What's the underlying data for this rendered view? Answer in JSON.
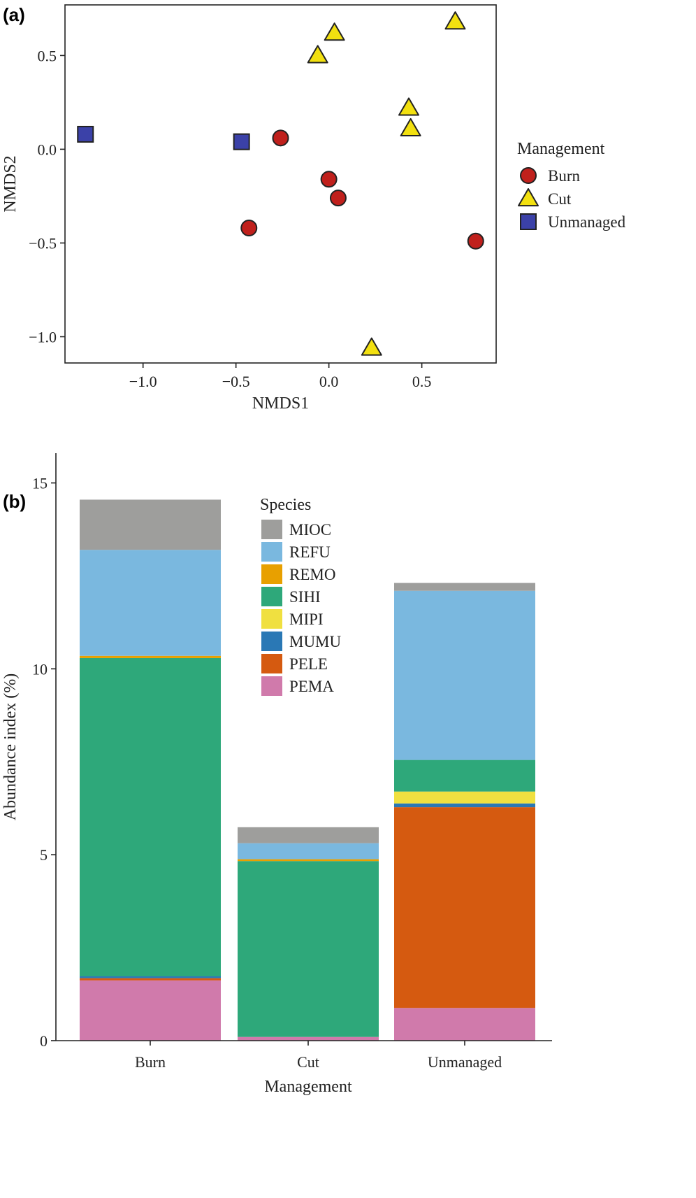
{
  "chart_data": [
    {
      "panel": "(a)",
      "type": "scatter",
      "xlabel": "NMDS1",
      "ylabel": "NMDS2",
      "xlim": [
        -1.42,
        0.9
      ],
      "ylim": [
        -1.14,
        0.77
      ],
      "xticks": [
        -1.0,
        -0.5,
        0.0,
        0.5
      ],
      "xtick_labels": [
        "−1.0",
        "−0.5",
        "0.0",
        "0.5"
      ],
      "yticks": [
        -1.0,
        -0.5,
        0.0,
        0.5
      ],
      "ytick_labels": [
        "−1.0",
        "−0.5",
        "0.0",
        "0.5"
      ],
      "grid": false,
      "legend_title": "Management",
      "legend_position": "right",
      "series": [
        {
          "name": "Burn",
          "shape": "circle",
          "color": "#c0201c",
          "points": [
            [
              -0.26,
              0.06
            ],
            [
              0.0,
              -0.16
            ],
            [
              0.05,
              -0.26
            ],
            [
              -0.43,
              -0.42
            ],
            [
              0.79,
              -0.49
            ]
          ]
        },
        {
          "name": "Cut",
          "shape": "triangle",
          "color": "#f2e010",
          "points": [
            [
              0.03,
              0.62
            ],
            [
              -0.06,
              0.5
            ],
            [
              0.68,
              0.68
            ],
            [
              0.43,
              0.22
            ],
            [
              0.44,
              0.11
            ],
            [
              0.23,
              -1.06
            ]
          ]
        },
        {
          "name": "Unmanaged",
          "shape": "square",
          "color": "#3b41a8",
          "points": [
            [
              -1.31,
              0.08
            ],
            [
              -0.47,
              0.04
            ]
          ]
        }
      ]
    },
    {
      "panel": "(b)",
      "type": "bar",
      "stacked": true,
      "xlabel": "Management",
      "ylabel": "Abundance index (%)",
      "ylim": [
        0,
        15.8
      ],
      "yticks": [
        0,
        5,
        10,
        15
      ],
      "ytick_labels": [
        "0",
        "5",
        "10",
        "15"
      ],
      "categories": [
        "Burn",
        "Cut",
        "Unmanaged"
      ],
      "grid": false,
      "legend_title": "Species",
      "legend_position": "top-center",
      "legend_order": [
        "MIOC",
        "REFU",
        "REMO",
        "SIHI",
        "MIPI",
        "MUMU",
        "PELE",
        "PEMA"
      ],
      "series": [
        {
          "name": "PEMA",
          "color": "#d07aab",
          "values": [
            1.62,
            0.1,
            0.88
          ]
        },
        {
          "name": "PELE",
          "color": "#d55a10",
          "values": [
            0.06,
            0.0,
            5.4
          ]
        },
        {
          "name": "MUMU",
          "color": "#2a78b5",
          "values": [
            0.05,
            0.0,
            0.1
          ]
        },
        {
          "name": "MIPI",
          "color": "#f0e040",
          "values": [
            0.0,
            0.0,
            0.32
          ]
        },
        {
          "name": "SIHI",
          "color": "#2ea87a",
          "values": [
            8.56,
            4.73,
            0.85
          ]
        },
        {
          "name": "REMO",
          "color": "#e8a000",
          "values": [
            0.06,
            0.05,
            0.0
          ]
        },
        {
          "name": "REFU",
          "color": "#7ab8df",
          "values": [
            2.85,
            0.43,
            4.55
          ]
        },
        {
          "name": "MIOC",
          "color": "#9e9e9c",
          "values": [
            1.35,
            0.43,
            0.21
          ]
        }
      ]
    }
  ]
}
